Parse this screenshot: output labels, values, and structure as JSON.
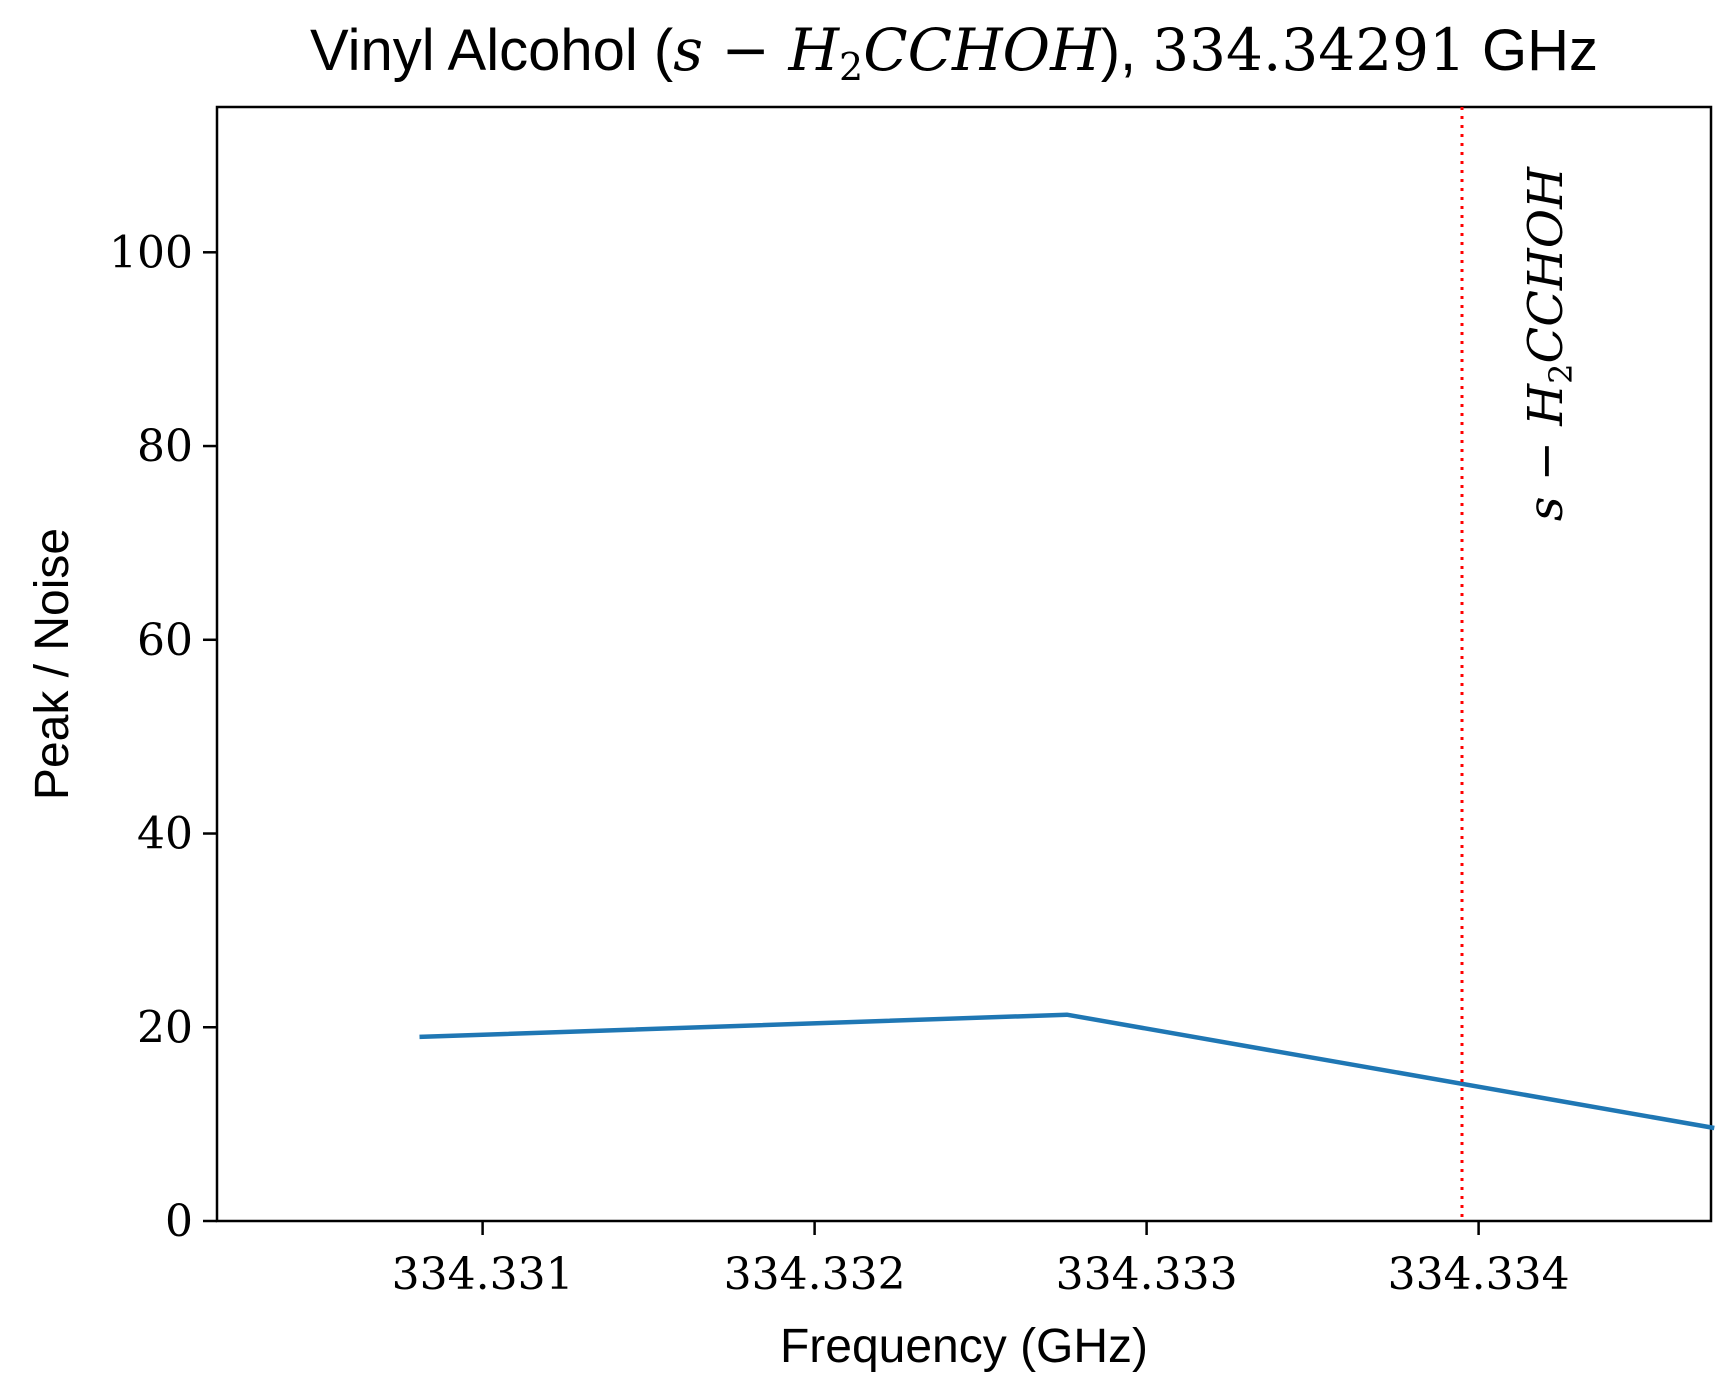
{
  "chart_data": {
    "type": "line",
    "title": {
      "prefix": "Vinyl Alcohol (",
      "formula_main": "s − H",
      "formula_sub": "2",
      "formula_rest": "CCHOH",
      "close": ")",
      "sep": ", ",
      "freq": "334.34291",
      "unit": " GHz"
    },
    "xlabel": "Frequency (GHz)",
    "ylabel": "Peak / Noise",
    "xlim": [
      334.3302,
      334.3347
    ],
    "ylim": [
      0,
      115
    ],
    "xticks": [
      334.331,
      334.332,
      334.333,
      334.334
    ],
    "xtick_labels": [
      "334.331",
      "334.332",
      "334.333",
      "334.334"
    ],
    "yticks": [
      0,
      20,
      40,
      60,
      80,
      100
    ],
    "ytick_labels": [
      "0",
      "20",
      "40",
      "60",
      "80",
      "100"
    ],
    "grid": false,
    "series": [
      {
        "color": "#1f77b4",
        "x": [
          334.33081,
          334.33276,
          334.33471
        ],
        "y": [
          19.0,
          21.3,
          9.6
        ]
      }
    ],
    "annotations": [
      {
        "type": "vline",
        "x": 334.33395,
        "color": "#ff0000",
        "style": "dotted",
        "label_main": "s − H",
        "label_sub": "2",
        "label_rest": "CCHOH"
      }
    ]
  }
}
